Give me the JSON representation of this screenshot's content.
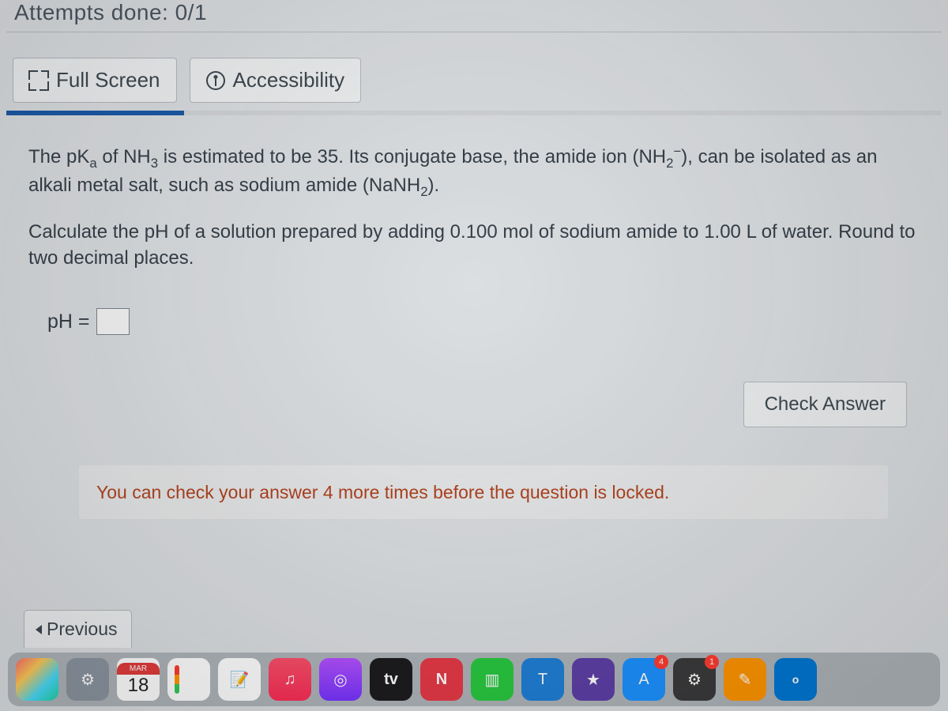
{
  "header": {
    "attempts_label": "Attempts done: 0/1"
  },
  "toolbar": {
    "fullscreen_label": "Full Screen",
    "accessibility_label": "Accessibility"
  },
  "progress": {
    "percent": 19,
    "track_color": "#d2d4d6",
    "fill_color": "#1b5aa6"
  },
  "question": {
    "para1_html": "The pK<sub>a</sub> of NH<sub>3</sub> is estimated to be 35. Its conjugate base, the amide ion (NH<sub>2</sub><sup>−</sup>), can be isolated as an alkali metal salt, such as sodium amide (NaNH<sub>2</sub>).",
    "para2_html": "Calculate the pH of a solution prepared by adding 0.100 mol of sodium amide to 1.00 L of water. Round to two decimal places."
  },
  "answer": {
    "label": "pH =",
    "value": ""
  },
  "actions": {
    "check_label": "Check Answer"
  },
  "info": {
    "message": "You can check your answer 4 more times before the question is locked."
  },
  "nav": {
    "previous_label": "Previous"
  },
  "dock": {
    "calendar": {
      "month": "MAR",
      "day": "18"
    },
    "tv_label": "tv",
    "appstore_badge": "4",
    "settings_badge": "1",
    "items": [
      "photos",
      "system-preferences",
      "calendar",
      "reminders",
      "notes",
      "music",
      "podcasts",
      "tv",
      "n-app",
      "numbers",
      "keynote",
      "imovie",
      "app-store",
      "settings",
      "pages",
      "outlook"
    ]
  },
  "colors": {
    "page_bg": "#dcdfe2",
    "text_primary": "#364049",
    "button_bg": "#eef0f1",
    "button_border": "#b5b9bd",
    "info_text": "#b0431f",
    "info_bg": "#e6e7e8"
  }
}
